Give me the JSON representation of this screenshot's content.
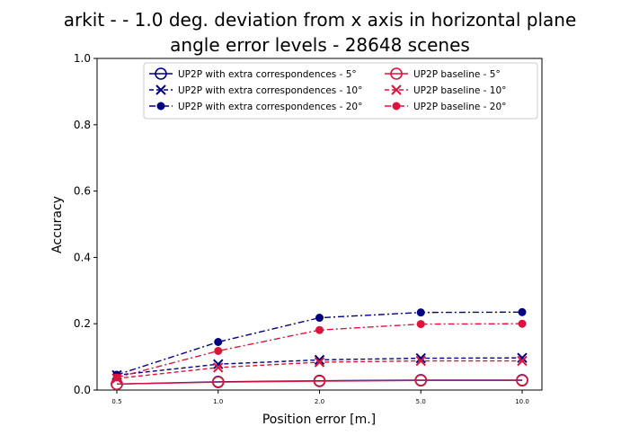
{
  "chart_data": {
    "type": "line",
    "title_lines": [
      "arkit -  - 1.0 deg. deviation from x axis in horizontal plane",
      "angle error levels - 28648 scenes"
    ],
    "xlabel": "Position error [m.]",
    "ylabel": "Accuracy",
    "categories": [
      "0.5",
      "1.0",
      "2.0",
      "5.0",
      "10.0"
    ],
    "ylim": [
      0.0,
      1.0
    ],
    "yticks": [
      "0.0",
      "0.2",
      "0.4",
      "0.6",
      "0.8",
      "1.0"
    ],
    "grid": false,
    "legend_placement": "top-center",
    "series": [
      {
        "name": "UP2P with extra correspondences - 5°",
        "color": "#000080",
        "linestyle": "solid",
        "marker": "circle-open",
        "values": [
          0.018,
          0.025,
          0.028,
          0.03,
          0.03
        ]
      },
      {
        "name": "UP2P with extra correspondences - 10°",
        "color": "#000080",
        "linestyle": "dashed",
        "marker": "x",
        "values": [
          0.045,
          0.078,
          0.091,
          0.096,
          0.097
        ]
      },
      {
        "name": "UP2P with extra correspondences - 20°",
        "color": "#000080",
        "linestyle": "dashdot",
        "marker": "dot",
        "values": [
          0.046,
          0.145,
          0.218,
          0.234,
          0.235
        ]
      },
      {
        "name": "UP2P baseline - 5°",
        "color": "#dc143c",
        "linestyle": "solid",
        "marker": "circle-open",
        "values": [
          0.018,
          0.024,
          0.027,
          0.029,
          0.029
        ]
      },
      {
        "name": "UP2P baseline - 10°",
        "color": "#dc143c",
        "linestyle": "dashed",
        "marker": "x",
        "values": [
          0.035,
          0.068,
          0.084,
          0.088,
          0.088
        ]
      },
      {
        "name": "UP2P baseline - 20°",
        "color": "#dc143c",
        "linestyle": "dashdot",
        "marker": "dot",
        "values": [
          0.038,
          0.118,
          0.181,
          0.199,
          0.2
        ]
      }
    ]
  }
}
